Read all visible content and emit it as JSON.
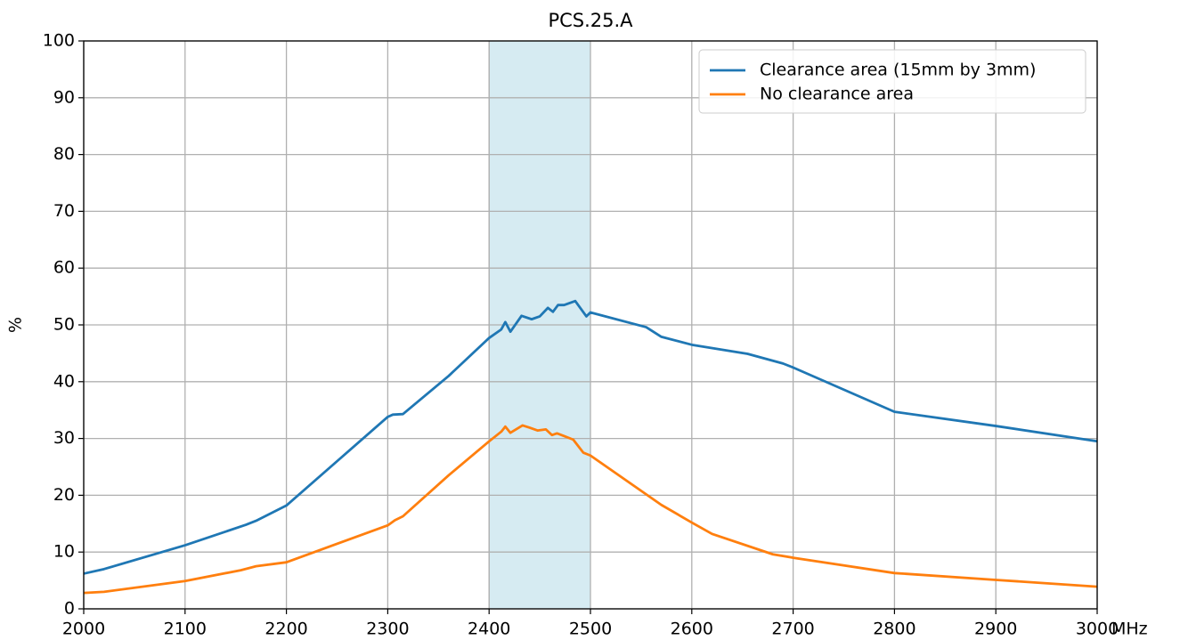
{
  "chart_data": {
    "type": "line",
    "title": "PCS.25.A",
    "y_label": "%",
    "x_unit": "MHz",
    "xlim": [
      2000,
      3000
    ],
    "ylim": [
      0,
      100
    ],
    "xticks": [
      2000,
      2100,
      2200,
      2300,
      2400,
      2500,
      2600,
      2700,
      2800,
      2900,
      3000
    ],
    "yticks": [
      0,
      10,
      20,
      30,
      40,
      50,
      60,
      70,
      80,
      90,
      100
    ],
    "grid": true,
    "legend": "upper right",
    "highlight": {
      "x": [
        2400,
        2500
      ],
      "color": "#add8e6"
    },
    "series": [
      {
        "name": "Clearance area (15mm by 3mm)",
        "color": "#1f77b4",
        "x": [
          2000,
          2020,
          2100,
          2160,
          2170,
          2200,
          2300,
          2305,
          2315,
          2360,
          2400,
          2412,
          2416,
          2421,
          2432,
          2442,
          2450,
          2458,
          2463,
          2468,
          2474,
          2485,
          2496,
          2500,
          2555,
          2570,
          2600,
          2655,
          2690,
          2700,
          2800,
          2900,
          3000
        ],
        "values": [
          6.2,
          7.0,
          11.2,
          14.8,
          15.5,
          18.2,
          33.8,
          34.2,
          34.3,
          41,
          47.7,
          49.2,
          50.5,
          48.8,
          51.6,
          51.0,
          51.5,
          53.0,
          52.3,
          53.5,
          53.5,
          54.2,
          51.5,
          52.2,
          49.6,
          47.9,
          46.5,
          44.9,
          43.2,
          42.5,
          34.7,
          32.2,
          29.5
        ]
      },
      {
        "name": "No clearance area",
        "color": "#ff7f0e",
        "x": [
          2000,
          2020,
          2100,
          2155,
          2170,
          2200,
          2300,
          2307,
          2315,
          2360,
          2400,
          2412,
          2416,
          2421,
          2433,
          2440,
          2448,
          2456,
          2462,
          2467,
          2483,
          2493,
          2500,
          2570,
          2600,
          2620,
          2680,
          2700,
          2800,
          2900,
          3000
        ],
        "values": [
          2.8,
          3.0,
          4.9,
          6.8,
          7.5,
          8.2,
          14.7,
          15.6,
          16.3,
          23.5,
          29.5,
          31.2,
          32.1,
          31.0,
          32.3,
          31.9,
          31.4,
          31.6,
          30.6,
          30.9,
          29.8,
          27.5,
          27.0,
          18.3,
          15.2,
          13.2,
          9.6,
          9.0,
          6.3,
          5.1,
          3.9
        ]
      }
    ]
  }
}
